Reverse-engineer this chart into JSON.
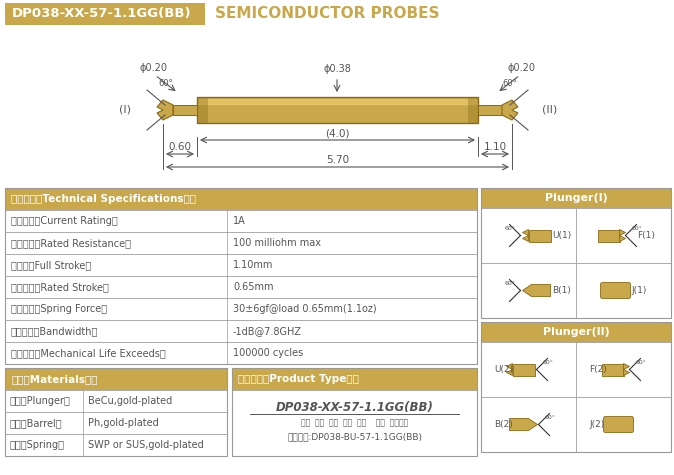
{
  "title_box_text": "DP038-XX-57-1.1GG(BB)",
  "title_box_color": "#C8A84B",
  "title_right_text": "SEMICONDUCTOR PROBES",
  "bg_color": "#FFFFFF",
  "gold_color": "#C8A84B",
  "gold_dark": "#8B6914",
  "gold_light": "#E8C96A",
  "line_color": "#555555",
  "specs": [
    [
      "技术要求（Technical Specifications）：",
      ""
    ],
    [
      "额定电流（Current Rating）",
      "1A"
    ],
    [
      "额定电阻（Rated Resistance）",
      "100 milliohm max"
    ],
    [
      "满行程（Full Stroke）",
      "1.10mm"
    ],
    [
      "额定行程（Rated Stroke）",
      "0.65mm"
    ],
    [
      "额定弹力（Spring Force）",
      "30±6gf@load 0.65mm(1.1oz)"
    ],
    [
      "频率带宽（Bandwidth）",
      "-1dB@7.8GHZ"
    ],
    [
      "测试寿命（Mechanical Life Exceeds）",
      "100000 cycles"
    ]
  ],
  "materials": [
    [
      "材质（Materials）：",
      ""
    ],
    [
      "针头（Plunger）",
      "BeCu,gold-plated"
    ],
    [
      "针管（Barrel）",
      "Ph,gold-plated"
    ],
    [
      "弹簧（Spring）",
      "SWP or SUS,gold-plated"
    ]
  ],
  "product_type_title": "成品型号（Product Type）：",
  "product_type_model": "DP038-XX-57-1.1GG(BB)",
  "product_type_labels": "系列  规格  头型  总长  弹力    镀金  针头根数",
  "product_type_note": "订购举例:DP038-BU-57-1.1GG(BB)",
  "dims": {
    "d_left": "ϕ0.20",
    "d_mid": "ϕ0.38",
    "d_right": "ϕ0.20",
    "len_mid": "(4.0)",
    "len_left": "0.60",
    "len_right": "1.10",
    "len_total": "5.70"
  }
}
